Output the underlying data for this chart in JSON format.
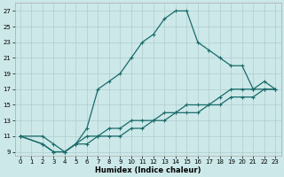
{
  "xlabel": "Humidex (Indice chaleur)",
  "background_color": "#cce8e8",
  "grid_color": "#b0cccc",
  "line_color": "#1a6b6b",
  "xlim": [
    -0.5,
    23.5
  ],
  "ylim": [
    8.5,
    28.0
  ],
  "xticks": [
    0,
    1,
    2,
    3,
    4,
    5,
    6,
    7,
    8,
    9,
    10,
    11,
    12,
    13,
    14,
    15,
    16,
    17,
    18,
    19,
    20,
    21,
    22,
    23
  ],
  "yticks": [
    9,
    11,
    13,
    15,
    17,
    19,
    21,
    23,
    25,
    27
  ],
  "line1_x": [
    0,
    2,
    3,
    4,
    5,
    6,
    7,
    8,
    9,
    10,
    11,
    12,
    13,
    14,
    15,
    16,
    17,
    18,
    19,
    20,
    21,
    22,
    23
  ],
  "line1_y": [
    11,
    10,
    9,
    9,
    10,
    10,
    11,
    11,
    11,
    12,
    12,
    13,
    13,
    14,
    14,
    14,
    15,
    15,
    16,
    16,
    16,
    17,
    17
  ],
  "line2_x": [
    0,
    2,
    3,
    4,
    5,
    6,
    7,
    8,
    9,
    10,
    11,
    12,
    13,
    14,
    15,
    16,
    17,
    18,
    19,
    20,
    21,
    22,
    23
  ],
  "line2_y": [
    11,
    10,
    9,
    9,
    10,
    11,
    11,
    12,
    12,
    13,
    13,
    13,
    14,
    14,
    15,
    15,
    15,
    16,
    17,
    17,
    17,
    18,
    17
  ],
  "line3_x": [
    0,
    2,
    3,
    4,
    5,
    6,
    7,
    8,
    9,
    10,
    11,
    12,
    13,
    14,
    15,
    16,
    17,
    18,
    19,
    20,
    21,
    22,
    23
  ],
  "line3_y": [
    11,
    11,
    10,
    9,
    10,
    12,
    17,
    18,
    19,
    21,
    23,
    24,
    26,
    27,
    27,
    23,
    22,
    21,
    20,
    20,
    17,
    17,
    17
  ]
}
